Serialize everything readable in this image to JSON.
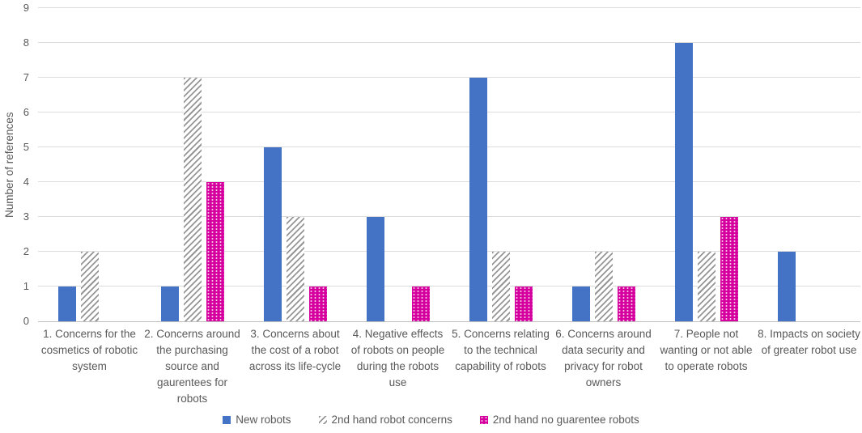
{
  "chart_data": {
    "type": "bar",
    "title": "",
    "xlabel": "",
    "ylabel": "Number of references",
    "ylim": [
      0,
      9
    ],
    "ytick_step": 1,
    "yticks": [
      0,
      1,
      2,
      3,
      4,
      5,
      6,
      7,
      8,
      9
    ],
    "grid": true,
    "legend_position": "bottom",
    "categories": [
      "1. Concerns for the\ncosmetics of robotic\nsystem",
      "2. Concerns around\nthe purchasing\nsource and\ngaurentees for\nrobots",
      "3. Concerns about\nthe cost of a robot\nacross its life-cycle",
      "4. Negative effects\nof robots on people\nduring the robots\nuse",
      "5. Concerns relating\nto the technical\ncapability of robots",
      "6. Concerns around\ndata security and\nprivacy for robot\nowners",
      "7. People not\nwanting or not able\nto operate robots",
      "8. Impacts on society\nof greater robot use"
    ],
    "series": [
      {
        "name": "New robots",
        "pattern": "solid",
        "color": "#4472C4",
        "values": [
          1,
          1,
          5,
          3,
          7,
          1,
          8,
          2
        ]
      },
      {
        "name": "2nd hand robot concerns",
        "pattern": "diagonal-hatch",
        "color": "#969696",
        "values": [
          2,
          7,
          3,
          0,
          2,
          2,
          2,
          0
        ]
      },
      {
        "name": "2nd hand no guarentee robots",
        "pattern": "dots",
        "color": "#D6009E",
        "values": [
          0,
          4,
          1,
          1,
          1,
          1,
          3,
          0
        ]
      }
    ],
    "colors": {
      "gridline": "#DCDCDC",
      "axis_line": "#BFBFBF",
      "text": "#595959"
    }
  }
}
